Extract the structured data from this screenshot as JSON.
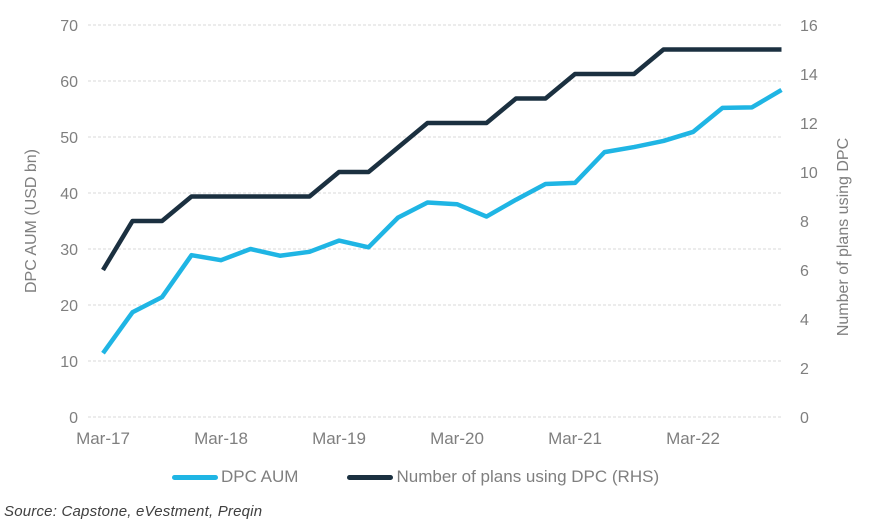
{
  "chart_data": {
    "type": "line",
    "title": "",
    "x_categories": [
      "Mar-17",
      "Jun-17",
      "Sep-17",
      "Dec-17",
      "Mar-18",
      "Jun-18",
      "Sep-18",
      "Dec-18",
      "Mar-19",
      "Jun-19",
      "Sep-19",
      "Dec-19",
      "Mar-20",
      "Jun-20",
      "Sep-20",
      "Dec-20",
      "Mar-21",
      "Jun-21",
      "Sep-21",
      "Dec-21",
      "Mar-22",
      "Jun-22",
      "Sep-22",
      "Dec-22"
    ],
    "x_axis_labels_shown": [
      "Mar-17",
      "Mar-18",
      "Mar-19",
      "Mar-20",
      "Mar-21",
      "Mar-22"
    ],
    "left_axis": {
      "label": "DPC AUM (USD bn)",
      "min": 0,
      "max": 70,
      "tick_step": 10,
      "ticks": [
        70,
        60,
        50,
        40,
        30,
        20,
        10,
        0
      ]
    },
    "right_axis": {
      "label": "Number of plans using DPC",
      "min": 0,
      "max": 16,
      "tick_step": 2,
      "ticks": [
        16,
        14,
        12,
        10,
        8,
        6,
        4,
        2,
        0
      ]
    },
    "series": [
      {
        "name": "DPC AUM",
        "axis": "left",
        "color": "#1FB5E4",
        "values": [
          11.4,
          18.7,
          21.4,
          28.9,
          28.0,
          30.0,
          28.8,
          29.5,
          31.5,
          30.3,
          35.6,
          38.3,
          38.0,
          35.8,
          38.8,
          41.6,
          41.8,
          47.3,
          48.2,
          49.3,
          50.9,
          55.2,
          55.3,
          58.4
        ]
      },
      {
        "name": "Number of plans using DPC (RHS)",
        "axis": "right",
        "color": "#1B3040",
        "values": [
          6,
          8,
          8,
          9,
          9,
          9,
          9,
          9,
          10,
          10,
          11,
          12,
          12,
          12,
          13,
          13,
          14,
          14,
          14,
          15,
          15,
          15,
          15,
          15
        ]
      }
    ],
    "grid": "horizontal-only",
    "gridline_color": "#d9d9d9",
    "legend_position": "bottom"
  },
  "source_note": "Source: Capstone, eVestment, Preqin"
}
